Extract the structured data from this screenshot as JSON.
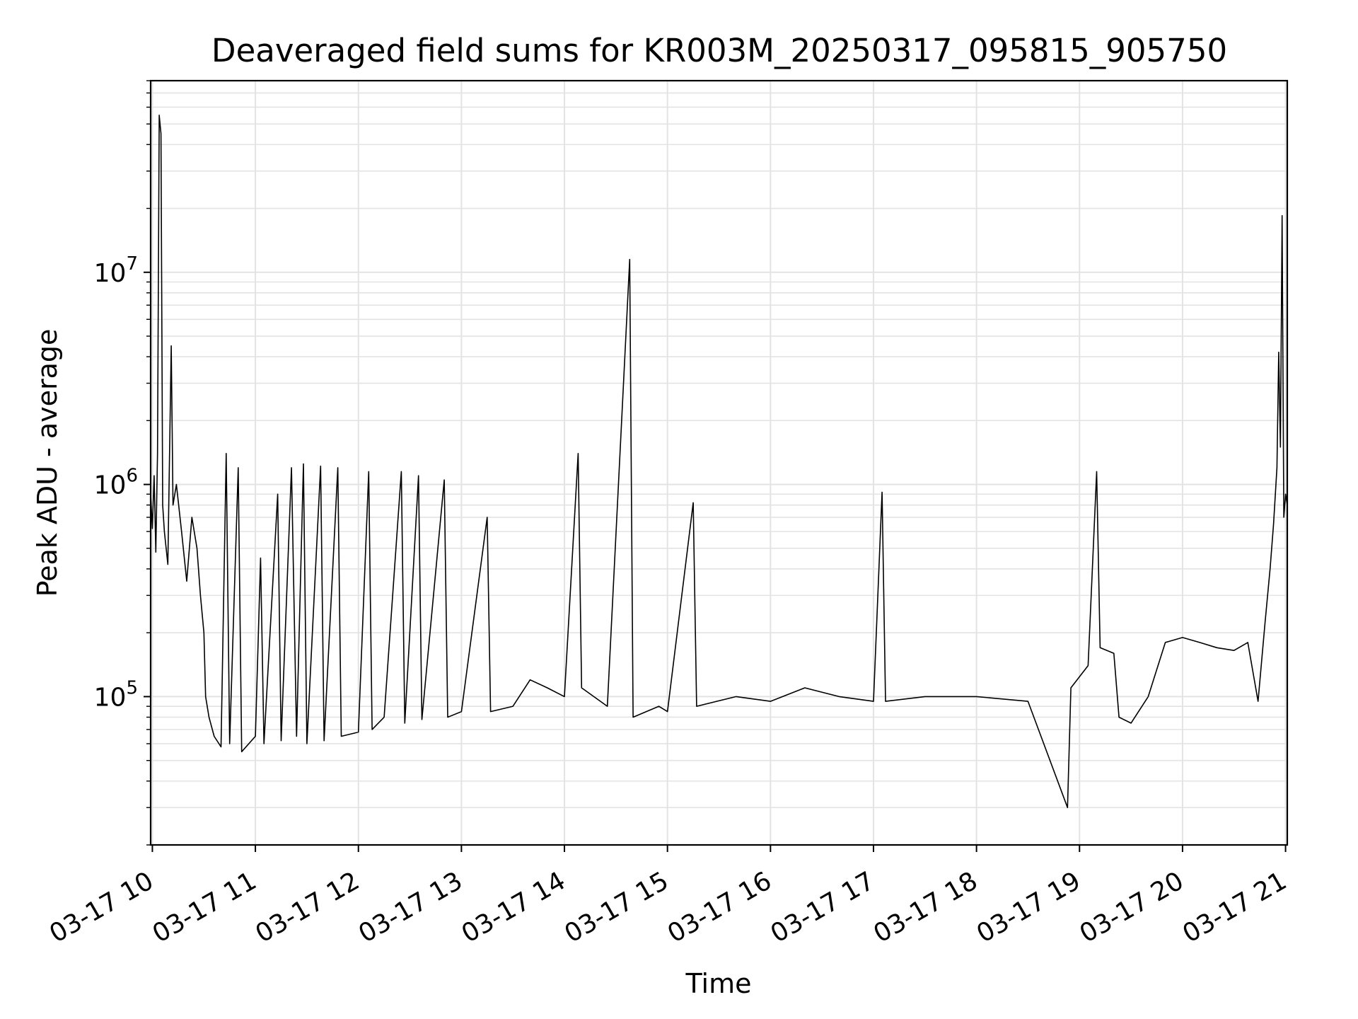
{
  "chart_data": {
    "type": "line",
    "title": "Deaveraged field sums for KR003M_20250317_095815_905750",
    "xlabel": "Time",
    "ylabel": "Peak ADU - average",
    "y_scale": "log",
    "ylim": [
      20000,
      80000000
    ],
    "xlim": [
      "2025-03-17T09:59",
      "2025-03-17T21:01"
    ],
    "grid": "major and minor, light gray",
    "line_color": "#000000",
    "x_ticks": [
      {
        "time": "2025-03-17T10:00",
        "label": "03-17 10"
      },
      {
        "time": "2025-03-17T11:00",
        "label": "03-17 11"
      },
      {
        "time": "2025-03-17T12:00",
        "label": "03-17 12"
      },
      {
        "time": "2025-03-17T13:00",
        "label": "03-17 13"
      },
      {
        "time": "2025-03-17T14:00",
        "label": "03-17 14"
      },
      {
        "time": "2025-03-17T15:00",
        "label": "03-17 15"
      },
      {
        "time": "2025-03-17T16:00",
        "label": "03-17 16"
      },
      {
        "time": "2025-03-17T17:00",
        "label": "03-17 17"
      },
      {
        "time": "2025-03-17T18:00",
        "label": "03-17 18"
      },
      {
        "time": "2025-03-17T19:00",
        "label": "03-17 19"
      },
      {
        "time": "2025-03-17T20:00",
        "label": "03-17 20"
      },
      {
        "time": "2025-03-17T21:00",
        "label": "03-17 21"
      }
    ],
    "y_ticks": [
      {
        "value": 100000,
        "base": "10",
        "exp": "5"
      },
      {
        "value": 1000000,
        "base": "10",
        "exp": "6"
      },
      {
        "value": 10000000,
        "base": "10",
        "exp": "7"
      }
    ],
    "series": [
      {
        "points": [
          [
            "2025-03-17T09:59",
            900000
          ],
          [
            "2025-03-17T10:00",
            620000
          ],
          [
            "2025-03-17T10:01",
            1100000
          ],
          [
            "2025-03-17T10:02",
            480000
          ],
          [
            "2025-03-17T10:03",
            1400000
          ],
          [
            "2025-03-17T10:04",
            55000000
          ],
          [
            "2025-03-17T10:05",
            45000000
          ],
          [
            "2025-03-17T10:06",
            800000
          ],
          [
            "2025-03-17T10:07",
            600000
          ],
          [
            "2025-03-17T10:09",
            420000
          ],
          [
            "2025-03-17T10:11",
            4500000
          ],
          [
            "2025-03-17T10:12",
            800000
          ],
          [
            "2025-03-17T10:14",
            1000000
          ],
          [
            "2025-03-17T10:17",
            600000
          ],
          [
            "2025-03-17T10:20",
            350000
          ],
          [
            "2025-03-17T10:23",
            700000
          ],
          [
            "2025-03-17T10:26",
            500000
          ],
          [
            "2025-03-17T10:28",
            300000
          ],
          [
            "2025-03-17T10:30",
            200000
          ],
          [
            "2025-03-17T10:31",
            100000
          ],
          [
            "2025-03-17T10:33",
            80000
          ],
          [
            "2025-03-17T10:36",
            65000
          ],
          [
            "2025-03-17T10:40",
            58000
          ],
          [
            "2025-03-17T10:43",
            1400000
          ],
          [
            "2025-03-17T10:45",
            60000
          ],
          [
            "2025-03-17T10:50",
            1200000
          ],
          [
            "2025-03-17T10:52",
            55000
          ],
          [
            "2025-03-17T11:00",
            65000
          ],
          [
            "2025-03-17T11:03",
            450000
          ],
          [
            "2025-03-17T11:05",
            60000
          ],
          [
            "2025-03-17T11:13",
            900000
          ],
          [
            "2025-03-17T11:15",
            62000
          ],
          [
            "2025-03-17T11:21",
            1200000
          ],
          [
            "2025-03-17T11:24",
            65000
          ],
          [
            "2025-03-17T11:28",
            1250000
          ],
          [
            "2025-03-17T11:30",
            60000
          ],
          [
            "2025-03-17T11:38",
            1220000
          ],
          [
            "2025-03-17T11:40",
            62000
          ],
          [
            "2025-03-17T11:48",
            1200000
          ],
          [
            "2025-03-17T11:50",
            65000
          ],
          [
            "2025-03-17T12:00",
            68000
          ],
          [
            "2025-03-17T12:06",
            1150000
          ],
          [
            "2025-03-17T12:08",
            70000
          ],
          [
            "2025-03-17T12:15",
            80000
          ],
          [
            "2025-03-17T12:25",
            1150000
          ],
          [
            "2025-03-17T12:27",
            75000
          ],
          [
            "2025-03-17T12:35",
            1100000
          ],
          [
            "2025-03-17T12:37",
            78000
          ],
          [
            "2025-03-17T12:50",
            1050000
          ],
          [
            "2025-03-17T12:52",
            80000
          ],
          [
            "2025-03-17T13:00",
            85000
          ],
          [
            "2025-03-17T13:15",
            700000
          ],
          [
            "2025-03-17T13:17",
            85000
          ],
          [
            "2025-03-17T13:30",
            90000
          ],
          [
            "2025-03-17T13:40",
            120000
          ],
          [
            "2025-03-17T13:50",
            110000
          ],
          [
            "2025-03-17T14:00",
            100000
          ],
          [
            "2025-03-17T14:08",
            1400000
          ],
          [
            "2025-03-17T14:10",
            110000
          ],
          [
            "2025-03-17T14:25",
            90000
          ],
          [
            "2025-03-17T14:38",
            11500000
          ],
          [
            "2025-03-17T14:40",
            80000
          ],
          [
            "2025-03-17T14:55",
            90000
          ],
          [
            "2025-03-17T15:00",
            85000
          ],
          [
            "2025-03-17T15:15",
            820000
          ],
          [
            "2025-03-17T15:17",
            90000
          ],
          [
            "2025-03-17T15:40",
            100000
          ],
          [
            "2025-03-17T16:00",
            95000
          ],
          [
            "2025-03-17T16:20",
            110000
          ],
          [
            "2025-03-17T16:40",
            100000
          ],
          [
            "2025-03-17T17:00",
            95000
          ],
          [
            "2025-03-17T17:05",
            920000
          ],
          [
            "2025-03-17T17:07",
            95000
          ],
          [
            "2025-03-17T17:30",
            100000
          ],
          [
            "2025-03-17T18:00",
            100000
          ],
          [
            "2025-03-17T18:30",
            95000
          ],
          [
            "2025-03-17T18:53",
            30000
          ],
          [
            "2025-03-17T18:55",
            110000
          ],
          [
            "2025-03-17T19:05",
            140000
          ],
          [
            "2025-03-17T19:10",
            1150000
          ],
          [
            "2025-03-17T19:12",
            170000
          ],
          [
            "2025-03-17T19:20",
            160000
          ],
          [
            "2025-03-17T19:23",
            80000
          ],
          [
            "2025-03-17T19:30",
            75000
          ],
          [
            "2025-03-17T19:40",
            100000
          ],
          [
            "2025-03-17T19:50",
            180000
          ],
          [
            "2025-03-17T20:00",
            190000
          ],
          [
            "2025-03-17T20:10",
            180000
          ],
          [
            "2025-03-17T20:20",
            170000
          ],
          [
            "2025-03-17T20:30",
            165000
          ],
          [
            "2025-03-17T20:38",
            180000
          ],
          [
            "2025-03-17T20:44",
            95000
          ],
          [
            "2025-03-17T20:48",
            220000
          ],
          [
            "2025-03-17T20:51",
            400000
          ],
          [
            "2025-03-17T20:53",
            650000
          ],
          [
            "2025-03-17T20:55",
            1200000
          ],
          [
            "2025-03-17T20:56",
            4200000
          ],
          [
            "2025-03-17T20:57",
            1500000
          ],
          [
            "2025-03-17T20:58",
            18500000
          ],
          [
            "2025-03-17T20:59",
            700000
          ],
          [
            "2025-03-17T21:00",
            900000
          ],
          [
            "2025-03-17T21:01",
            800000
          ]
        ]
      }
    ]
  }
}
